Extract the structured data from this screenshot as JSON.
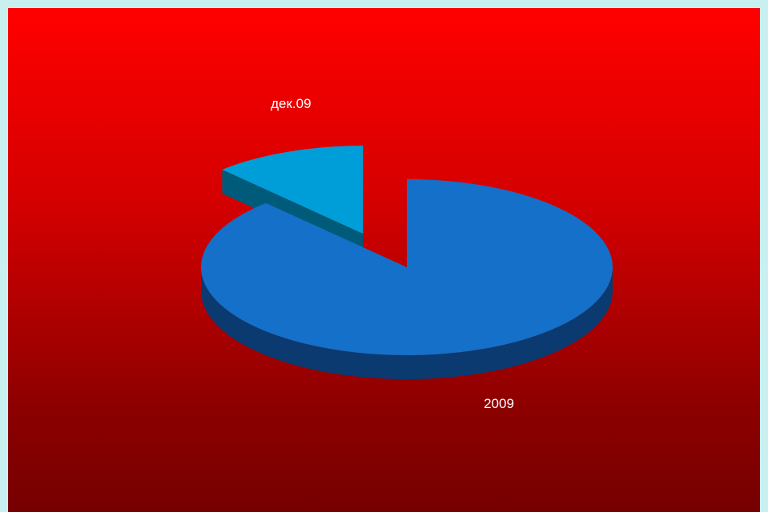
{
  "chart_data": {
    "type": "pie",
    "categories": [
      "2009",
      "дек.09"
    ],
    "values": [
      88,
      12
    ],
    "title": "",
    "colors": {
      "2009": {
        "top": "#1470c8",
        "side": "#0a3a70"
      },
      "дек.09": {
        "top": "#009ed8",
        "side": "#005a7a"
      }
    },
    "exploded": "дек.09",
    "style": "3d"
  },
  "slide": {
    "background_top": "#ff0000",
    "background_bottom": "#760000",
    "border_color": "#c8f0f0"
  }
}
